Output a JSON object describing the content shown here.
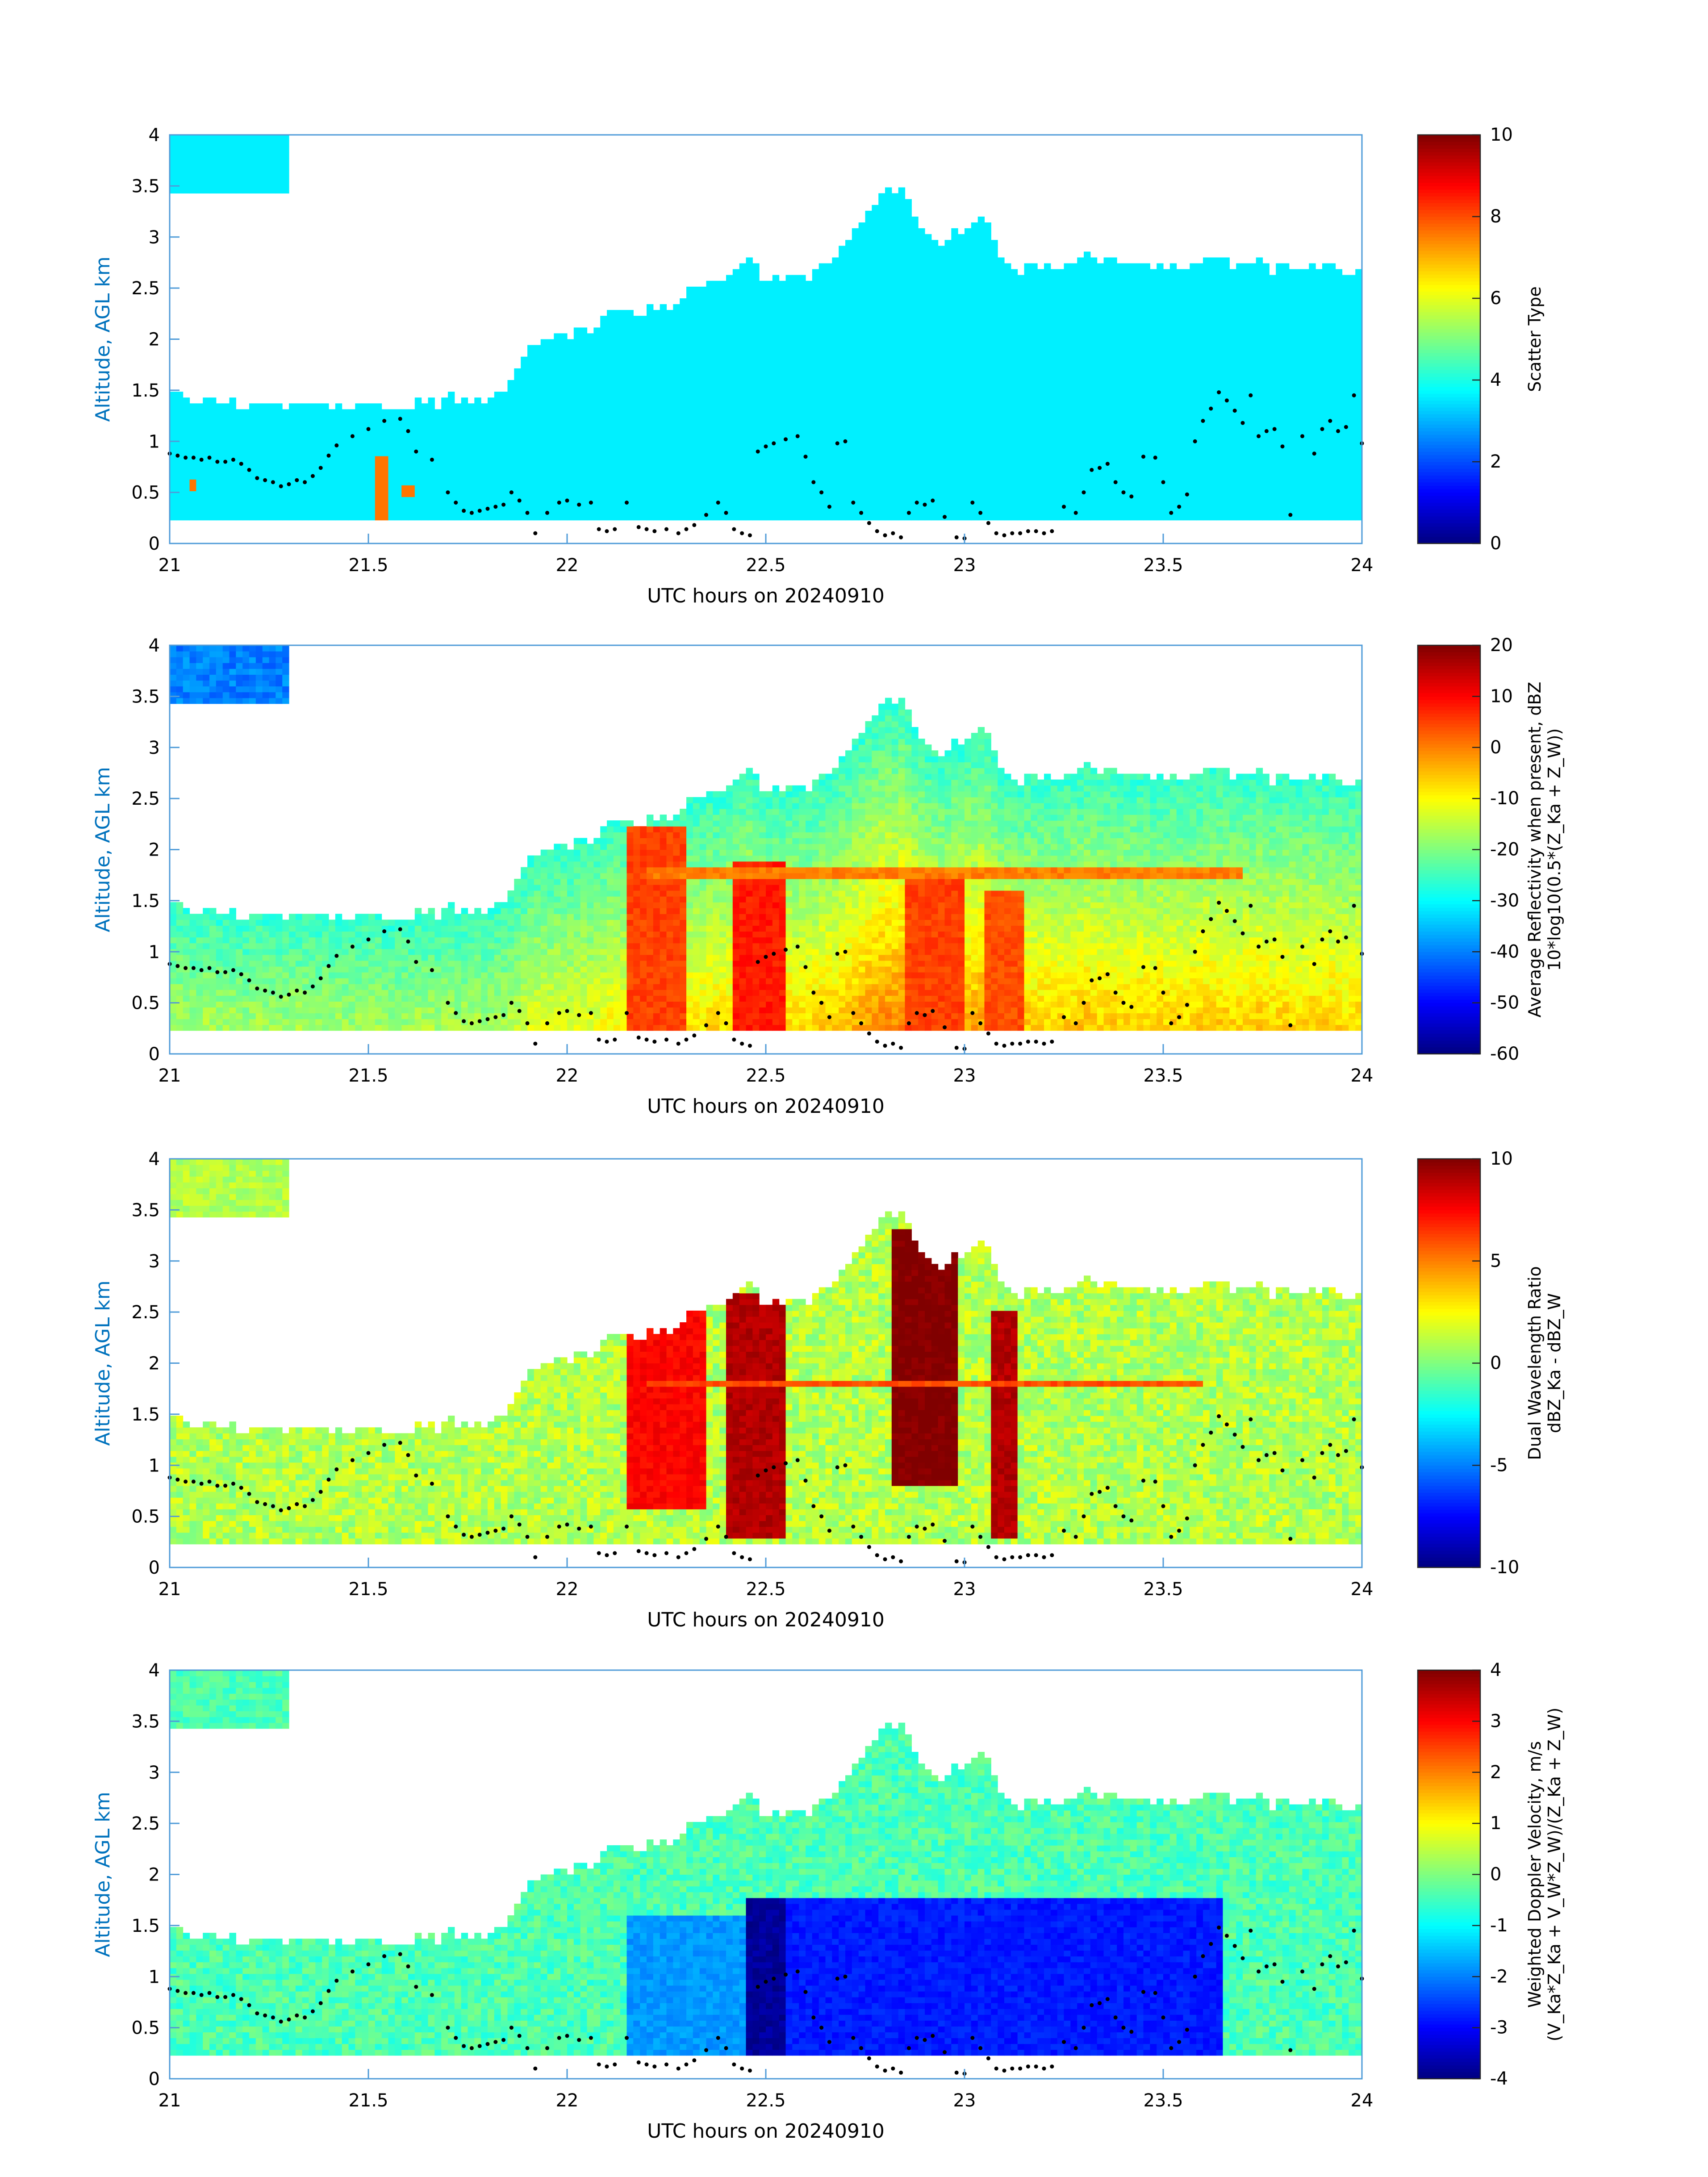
{
  "figure": {
    "colors": {
      "axis_label_blue": "#0072bd",
      "frame_blue": "#4f9bd8",
      "text": "#000000",
      "dots": "#000000"
    },
    "colormap": "jet"
  },
  "chart_data": [
    {
      "type": "heatmap",
      "title": "",
      "xlabel": "UTC hours on 20240910",
      "ylabel": "Altitude, AGL km",
      "xlim": [
        21,
        24
      ],
      "ylim": [
        0,
        4
      ],
      "xticks": [
        21,
        21.5,
        22,
        22.5,
        23,
        23.5,
        24
      ],
      "yticks": [
        0,
        0.5,
        1,
        1.5,
        2,
        2.5,
        3,
        3.5,
        4
      ],
      "colorbar": {
        "label_lines": [
          "Scatter Type"
        ],
        "clim": [
          0,
          10
        ],
        "ticks": [
          0,
          2,
          4,
          6,
          8,
          10
        ]
      },
      "value_field": "scatter_type",
      "dominant_value": 3.6,
      "features": [
        {
          "x": [
            21.05,
            21.07
          ],
          "y": [
            0.5,
            0.6
          ],
          "value": 7.6
        },
        {
          "x": [
            21.52,
            21.55
          ],
          "y": [
            0.2,
            0.85
          ],
          "value": 7.6
        },
        {
          "x": [
            21.59,
            21.61
          ],
          "y": [
            0.45,
            0.55
          ],
          "value": 7.6
        }
      ]
    },
    {
      "type": "heatmap",
      "title": "",
      "xlabel": "UTC hours on 20240910",
      "ylabel": "Altitude, AGL km",
      "xlim": [
        21,
        24
      ],
      "ylim": [
        0,
        4
      ],
      "xticks": [
        21,
        21.5,
        22,
        22.5,
        23,
        23.5,
        24
      ],
      "yticks": [
        0,
        0.5,
        1,
        1.5,
        2,
        2.5,
        3,
        3.5,
        4
      ],
      "colorbar": {
        "label_lines": [
          "Average Reflectivity when present, dBZ",
          "10*log10(0.5*(Z_Ka + Z_W))"
        ],
        "clim": [
          -60,
          20
        ],
        "ticks": [
          -60,
          -50,
          -40,
          -30,
          -20,
          -10,
          0,
          10,
          20
        ]
      },
      "value_field": "reflectivity_dbz",
      "dominant_value": -18,
      "features": [
        {
          "x": [
            22.15,
            22.3
          ],
          "y": [
            0.2,
            2.2
          ],
          "value": 5
        },
        {
          "x": [
            22.42,
            22.55
          ],
          "y": [
            0.2,
            1.9
          ],
          "value": 8
        },
        {
          "x": [
            22.85,
            23.0
          ],
          "y": [
            0.2,
            1.8
          ],
          "value": 5
        },
        {
          "x": [
            23.05,
            23.15
          ],
          "y": [
            0.2,
            1.6
          ],
          "value": 4
        },
        {
          "x": [
            22.2,
            23.7
          ],
          "y": [
            1.7,
            1.85
          ],
          "value": 0
        }
      ]
    },
    {
      "type": "heatmap",
      "title": "",
      "xlabel": "UTC hours on 20240910",
      "ylabel": "Altitude, AGL km",
      "xlim": [
        21,
        24
      ],
      "ylim": [
        0,
        4
      ],
      "xticks": [
        21,
        21.5,
        22,
        22.5,
        23,
        23.5,
        24
      ],
      "yticks": [
        0,
        0.5,
        1,
        1.5,
        2,
        2.5,
        3,
        3.5,
        4
      ],
      "colorbar": {
        "label_lines": [
          "Dual Wavelength Ratio",
          "dBZ_Ka - dBZ_W"
        ],
        "clim": [
          -10,
          10
        ],
        "ticks": [
          -10,
          -5,
          0,
          5,
          10
        ]
      },
      "value_field": "dwr_db",
      "dominant_value": 1,
      "features": [
        {
          "x": [
            22.15,
            22.35
          ],
          "y": [
            0.6,
            2.6
          ],
          "value": 7.5
        },
        {
          "x": [
            22.4,
            22.55
          ],
          "y": [
            0.3,
            2.7
          ],
          "value": 9
        },
        {
          "x": [
            22.82,
            22.98
          ],
          "y": [
            0.8,
            3.3
          ],
          "value": 10
        },
        {
          "x": [
            23.06,
            23.14
          ],
          "y": [
            0.3,
            2.5
          ],
          "value": 9
        },
        {
          "x": [
            22.2,
            23.6
          ],
          "y": [
            1.75,
            1.85
          ],
          "value": 6
        }
      ]
    },
    {
      "type": "heatmap",
      "title": "",
      "xlabel": "UTC hours on 20240910",
      "ylabel": "Altitude, AGL km",
      "xlim": [
        21,
        24
      ],
      "ylim": [
        0,
        4
      ],
      "xticks": [
        21,
        21.5,
        22,
        22.5,
        23,
        23.5,
        24
      ],
      "yticks": [
        0,
        0.5,
        1,
        1.5,
        2,
        2.5,
        3,
        3.5,
        4
      ],
      "colorbar": {
        "label_lines": [
          "Weighted Doppler Velocity, m/s",
          "(V_Ka*Z_Ka + V_W*Z_W)/(Z_Ka + Z_W)"
        ],
        "clim": [
          -4,
          4
        ],
        "ticks": [
          -4,
          -3,
          -2,
          -1,
          0,
          1,
          2,
          3,
          4
        ]
      },
      "value_field": "doppler_velocity_ms",
      "dominant_value": -0.4,
      "features": [
        {
          "x": [
            22.15,
            22.45
          ],
          "y": [
            0.2,
            1.6
          ],
          "value": -1.8
        },
        {
          "x": [
            22.45,
            23.65
          ],
          "y": [
            0.2,
            1.75
          ],
          "value": -2.8
        },
        {
          "x": [
            22.45,
            22.55
          ],
          "y": [
            0.2,
            1.75
          ],
          "value": -3.8
        }
      ]
    }
  ],
  "field": {
    "scatter_type": {
      "lower_layer": [
        [
          21.0,
          1.45
        ],
        [
          21.1,
          1.4
        ],
        [
          21.2,
          1.35
        ],
        [
          21.3,
          1.4
        ],
        [
          21.4,
          1.35
        ],
        [
          21.5,
          1.35
        ],
        [
          21.6,
          1.35
        ],
        [
          21.7,
          1.4
        ],
        [
          21.8,
          1.45
        ],
        [
          21.85,
          1.55
        ],
        [
          21.9,
          1.9
        ],
        [
          21.95,
          2.0
        ],
        [
          22.0,
          2.05
        ],
        [
          22.05,
          2.1
        ],
        [
          22.1,
          2.2
        ],
        [
          22.15,
          2.3
        ],
        [
          22.2,
          2.25
        ],
        [
          22.25,
          2.3
        ],
        [
          22.3,
          2.45
        ],
        [
          22.4,
          2.55
        ],
        [
          22.45,
          2.8
        ],
        [
          22.5,
          2.6
        ],
        [
          22.6,
          2.55
        ],
        [
          22.65,
          2.75
        ],
        [
          22.7,
          2.9
        ],
        [
          22.75,
          3.2
        ],
        [
          22.8,
          3.4
        ],
        [
          22.85,
          3.5
        ],
        [
          22.9,
          3.0
        ],
        [
          22.95,
          2.9
        ],
        [
          23.0,
          3.1
        ],
        [
          23.05,
          3.2
        ],
        [
          23.1,
          2.7
        ],
        [
          23.2,
          2.7
        ],
        [
          23.3,
          2.8
        ],
        [
          23.4,
          2.8
        ],
        [
          23.5,
          2.7
        ],
        [
          23.6,
          2.75
        ],
        [
          23.7,
          2.75
        ],
        [
          23.8,
          2.7
        ],
        [
          23.9,
          2.7
        ],
        [
          24.0,
          2.65
        ]
      ],
      "base": 0.2
    }
  },
  "cloud_base_dots": [
    [
      21.0,
      0.88
    ],
    [
      21.02,
      0.86
    ],
    [
      21.04,
      0.84
    ],
    [
      21.06,
      0.84
    ],
    [
      21.08,
      0.82
    ],
    [
      21.1,
      0.84
    ],
    [
      21.12,
      0.8
    ],
    [
      21.14,
      0.8
    ],
    [
      21.16,
      0.82
    ],
    [
      21.18,
      0.78
    ],
    [
      21.2,
      0.72
    ],
    [
      21.22,
      0.64
    ],
    [
      21.24,
      0.62
    ],
    [
      21.26,
      0.6
    ],
    [
      21.28,
      0.56
    ],
    [
      21.3,
      0.58
    ],
    [
      21.32,
      0.62
    ],
    [
      21.34,
      0.6
    ],
    [
      21.36,
      0.66
    ],
    [
      21.38,
      0.74
    ],
    [
      21.4,
      0.86
    ],
    [
      21.42,
      0.96
    ],
    [
      21.46,
      1.05
    ],
    [
      21.5,
      1.12
    ],
    [
      21.54,
      1.2
    ],
    [
      21.58,
      1.22
    ],
    [
      21.6,
      1.1
    ],
    [
      21.62,
      0.9
    ],
    [
      21.66,
      0.82
    ],
    [
      21.7,
      0.5
    ],
    [
      21.72,
      0.4
    ],
    [
      21.74,
      0.32
    ],
    [
      21.76,
      0.3
    ],
    [
      21.78,
      0.32
    ],
    [
      21.8,
      0.34
    ],
    [
      21.82,
      0.36
    ],
    [
      21.84,
      0.38
    ],
    [
      21.86,
      0.5
    ],
    [
      21.88,
      0.42
    ],
    [
      21.9,
      0.3
    ],
    [
      21.92,
      0.1
    ],
    [
      21.95,
      0.3
    ],
    [
      21.98,
      0.4
    ],
    [
      22.0,
      0.42
    ],
    [
      22.03,
      0.38
    ],
    [
      22.06,
      0.4
    ],
    [
      22.08,
      0.14
    ],
    [
      22.1,
      0.12
    ],
    [
      22.12,
      0.14
    ],
    [
      22.15,
      0.4
    ],
    [
      22.18,
      0.16
    ],
    [
      22.2,
      0.14
    ],
    [
      22.22,
      0.12
    ],
    [
      22.25,
      0.14
    ],
    [
      22.28,
      0.1
    ],
    [
      22.3,
      0.14
    ],
    [
      22.32,
      0.18
    ],
    [
      22.35,
      0.28
    ],
    [
      22.38,
      0.4
    ],
    [
      22.4,
      0.3
    ],
    [
      22.42,
      0.14
    ],
    [
      22.44,
      0.1
    ],
    [
      22.46,
      0.08
    ],
    [
      22.48,
      0.9
    ],
    [
      22.5,
      0.95
    ],
    [
      22.52,
      0.98
    ],
    [
      22.55,
      1.02
    ],
    [
      22.58,
      1.05
    ],
    [
      22.6,
      0.85
    ],
    [
      22.62,
      0.6
    ],
    [
      22.64,
      0.5
    ],
    [
      22.66,
      0.36
    ],
    [
      22.68,
      0.98
    ],
    [
      22.7,
      1.0
    ],
    [
      22.72,
      0.4
    ],
    [
      22.74,
      0.3
    ],
    [
      22.76,
      0.2
    ],
    [
      22.78,
      0.12
    ],
    [
      22.8,
      0.08
    ],
    [
      22.82,
      0.1
    ],
    [
      22.84,
      0.06
    ],
    [
      22.86,
      0.3
    ],
    [
      22.88,
      0.4
    ],
    [
      22.9,
      0.38
    ],
    [
      22.92,
      0.42
    ],
    [
      22.95,
      0.26
    ],
    [
      22.98,
      0.06
    ],
    [
      23.0,
      0.05
    ],
    [
      23.02,
      0.4
    ],
    [
      23.04,
      0.3
    ],
    [
      23.06,
      0.2
    ],
    [
      23.08,
      0.1
    ],
    [
      23.1,
      0.08
    ],
    [
      23.12,
      0.1
    ],
    [
      23.14,
      0.1
    ],
    [
      23.16,
      0.12
    ],
    [
      23.18,
      0.12
    ],
    [
      23.2,
      0.1
    ],
    [
      23.22,
      0.12
    ],
    [
      23.25,
      0.36
    ],
    [
      23.28,
      0.3
    ],
    [
      23.3,
      0.5
    ],
    [
      23.32,
      0.72
    ],
    [
      23.34,
      0.74
    ],
    [
      23.36,
      0.78
    ],
    [
      23.38,
      0.6
    ],
    [
      23.4,
      0.5
    ],
    [
      23.42,
      0.46
    ],
    [
      23.45,
      0.85
    ],
    [
      23.48,
      0.84
    ],
    [
      23.5,
      0.6
    ],
    [
      23.52,
      0.3
    ],
    [
      23.54,
      0.36
    ],
    [
      23.56,
      0.48
    ],
    [
      23.58,
      1.0
    ],
    [
      23.6,
      1.2
    ],
    [
      23.62,
      1.32
    ],
    [
      23.64,
      1.48
    ],
    [
      23.66,
      1.4
    ],
    [
      23.68,
      1.3
    ],
    [
      23.7,
      1.18
    ],
    [
      23.72,
      1.45
    ],
    [
      23.74,
      1.05
    ],
    [
      23.76,
      1.1
    ],
    [
      23.78,
      1.12
    ],
    [
      23.8,
      0.95
    ],
    [
      23.82,
      0.28
    ],
    [
      23.85,
      1.05
    ],
    [
      23.88,
      0.88
    ],
    [
      23.9,
      1.12
    ],
    [
      23.92,
      1.2
    ],
    [
      23.94,
      1.1
    ],
    [
      23.96,
      1.14
    ],
    [
      23.98,
      1.45
    ],
    [
      24.0,
      0.98
    ]
  ]
}
